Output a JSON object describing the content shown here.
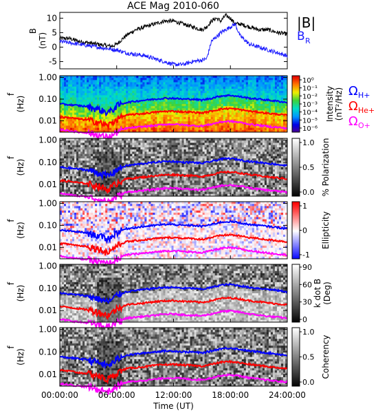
{
  "title": "ACE Mag 2010-060",
  "xlabel": "Time (UT)",
  "x_ticks": [
    "00:00:00",
    "06:00:00",
    "12:00:00",
    "18:00:00",
    "24:00:00"
  ],
  "legend_top": {
    "b_mag": "|B|",
    "b_r": "B",
    "b_r_sub": "R",
    "b_mag_color": "#000000",
    "b_r_color": "#1a1aff"
  },
  "legend_freq": [
    {
      "sym": "Ω",
      "sub": "H+",
      "color": "#0000ff"
    },
    {
      "sym": "Ω",
      "sub": "He+",
      "color": "#ff0000"
    },
    {
      "sym": "Ω",
      "sub": "O+",
      "color": "#ff00ff"
    }
  ],
  "chart_data": [
    {
      "type": "line",
      "name": "B field",
      "ylabel": "B",
      "ylabel_unit": "(nT)",
      "y_ticks": [
        "10",
        "5",
        "0",
        "-5"
      ],
      "ylim": [
        -7.5,
        12
      ],
      "xlim_hours": [
        0,
        24
      ],
      "series": [
        {
          "name": "|B|",
          "color": "#000000",
          "x": [
            0,
            1,
            2,
            3,
            4,
            5,
            5.5,
            6,
            7,
            8,
            9,
            10,
            11,
            12,
            13,
            14,
            15,
            15.5,
            16,
            16.5,
            17,
            17.5,
            18,
            18.5,
            19,
            20,
            21,
            22,
            23,
            24
          ],
          "values": [
            3,
            3,
            2,
            1.5,
            1,
            0.5,
            0.3,
            1,
            4,
            6,
            7,
            8,
            9,
            9,
            8,
            7,
            6,
            7,
            9,
            10,
            9,
            11,
            10,
            8,
            8,
            7,
            6,
            6,
            5,
            4.5
          ]
        },
        {
          "name": "B_R",
          "color": "#1a1aff",
          "x": [
            0,
            1,
            2,
            3,
            4,
            5,
            6,
            7,
            8,
            9,
            10,
            11,
            12,
            13,
            14,
            15,
            15.5,
            16,
            17,
            18,
            18.5,
            19,
            20,
            21,
            22,
            23,
            24
          ],
          "values": [
            2,
            1.5,
            1,
            0.5,
            0,
            -0.5,
            -1,
            -2,
            -2.5,
            -3,
            -4,
            -5,
            -6,
            -6,
            -5,
            -4.5,
            -4,
            2,
            5,
            7,
            8,
            4,
            1,
            0,
            -1,
            -2,
            -3
          ]
        }
      ]
    },
    {
      "type": "heatmap",
      "name": "Intensity",
      "ylabel": "f",
      "ylabel_unit": "(Hz)",
      "y_ticks": [
        "1.00",
        "0.10",
        "0.01"
      ],
      "colorbar_label": "Intensity (nT²/Hz)",
      "colorbar_ticks": [
        "10⁰",
        "10⁻¹",
        "10⁻²",
        "10⁻³",
        "10⁻⁴",
        "10⁻⁵",
        "10⁻⁶"
      ],
      "colorscale": "rainbow"
    },
    {
      "type": "heatmap",
      "name": "% Polarization",
      "ylabel": "f",
      "ylabel_unit": "(Hz)",
      "y_ticks": [
        "1.00",
        "0.10",
        "0.01"
      ],
      "colorbar_label": "% Polarization",
      "colorbar_ticks": [
        "1.0",
        "0.5",
        "0.0"
      ],
      "colorscale": "gray"
    },
    {
      "type": "heatmap",
      "name": "Ellipticity",
      "ylabel": "f",
      "ylabel_unit": "(Hz)",
      "y_ticks": [
        "1.00",
        "0.10",
        "0.01"
      ],
      "colorbar_label": "Ellipticity",
      "colorbar_ticks": [
        "1",
        "0",
        "-1"
      ],
      "colorscale": "bluewhitered"
    },
    {
      "type": "heatmap",
      "name": "k dot B",
      "ylabel": "f",
      "ylabel_unit": "(Hz)",
      "y_ticks": [
        "1.00",
        "0.10",
        "0.01"
      ],
      "colorbar_label": "k dot B",
      "colorbar_unit": "(Deg)",
      "colorbar_ticks": [
        "90",
        "60",
        "30",
        "0"
      ],
      "colorscale": "gray"
    },
    {
      "type": "heatmap",
      "name": "Coherency",
      "ylabel": "f",
      "ylabel_unit": "(Hz)",
      "y_ticks": [
        "1.00",
        "0.10",
        "0.01"
      ],
      "colorbar_label": "Coherency",
      "colorbar_ticks": [
        "1.0",
        "0.5",
        "0.0"
      ],
      "colorscale": "gray"
    }
  ],
  "gyro_lines": {
    "x_hours": [
      0,
      1,
      2,
      3,
      3.5,
      4,
      5,
      5.5,
      6,
      7,
      8,
      9,
      10,
      11,
      12,
      13,
      14,
      15,
      16,
      17,
      18,
      19,
      20,
      21,
      22,
      23,
      24
    ],
    "H+": [
      0.06,
      0.055,
      0.05,
      0.045,
      0.04,
      0.035,
      0.025,
      0.03,
      0.05,
      0.07,
      0.08,
      0.09,
      0.1,
      0.11,
      0.11,
      0.1,
      0.1,
      0.09,
      0.11,
      0.14,
      0.15,
      0.13,
      0.11,
      0.1,
      0.09,
      0.08,
      0.07
    ],
    "He+": [
      0.015,
      0.014,
      0.012,
      0.011,
      0.01,
      0.009,
      0.006,
      0.008,
      0.012,
      0.018,
      0.02,
      0.022,
      0.025,
      0.027,
      0.028,
      0.026,
      0.025,
      0.023,
      0.028,
      0.035,
      0.037,
      0.033,
      0.028,
      0.025,
      0.022,
      0.02,
      0.018
    ],
    "O+": [
      0.004,
      0.0035,
      0.003,
      0.0028,
      0.0025,
      0.0022,
      0.0018,
      0.002,
      0.003,
      0.0045,
      0.005,
      0.0055,
      0.006,
      0.0068,
      0.007,
      0.0065,
      0.006,
      0.0058,
      0.007,
      0.009,
      0.0095,
      0.0085,
      0.007,
      0.0062,
      0.0055,
      0.005,
      0.0045
    ]
  }
}
